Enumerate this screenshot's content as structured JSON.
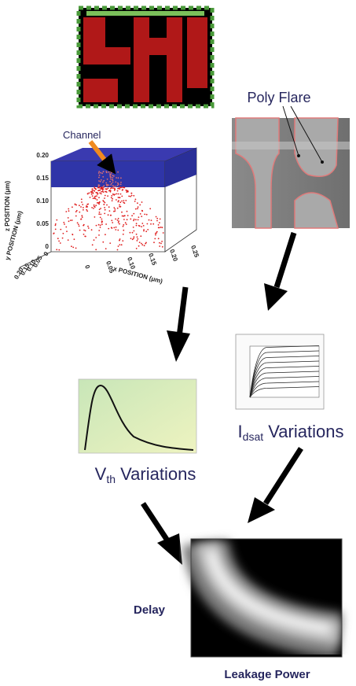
{
  "labels": {
    "channel": "Channel",
    "poly_flare": "Poly Flare",
    "vth": {
      "main": "V",
      "sub": "th",
      "rest": " Variations"
    },
    "idsat": {
      "main": "I",
      "sub": "dsat",
      "rest": " Variations"
    },
    "delay": "Delay",
    "leakage_power": "Leakage Power"
  },
  "plot_3d": {
    "z_axis_title": "z POSITION (μm)",
    "z_ticks": [
      "0.20",
      "0.15",
      "0.10",
      "0.05",
      "0"
    ],
    "x_axis_title": "x POSITION (μm)",
    "x_ticks": [
      "0",
      "0.05",
      "0.10",
      "0.15",
      "0.20",
      "0.25"
    ],
    "y_axis_title": "y POSITION (μm)",
    "y_ticks": [
      "0",
      "0.05",
      "0.10",
      "0.15",
      "0.20"
    ]
  }
}
